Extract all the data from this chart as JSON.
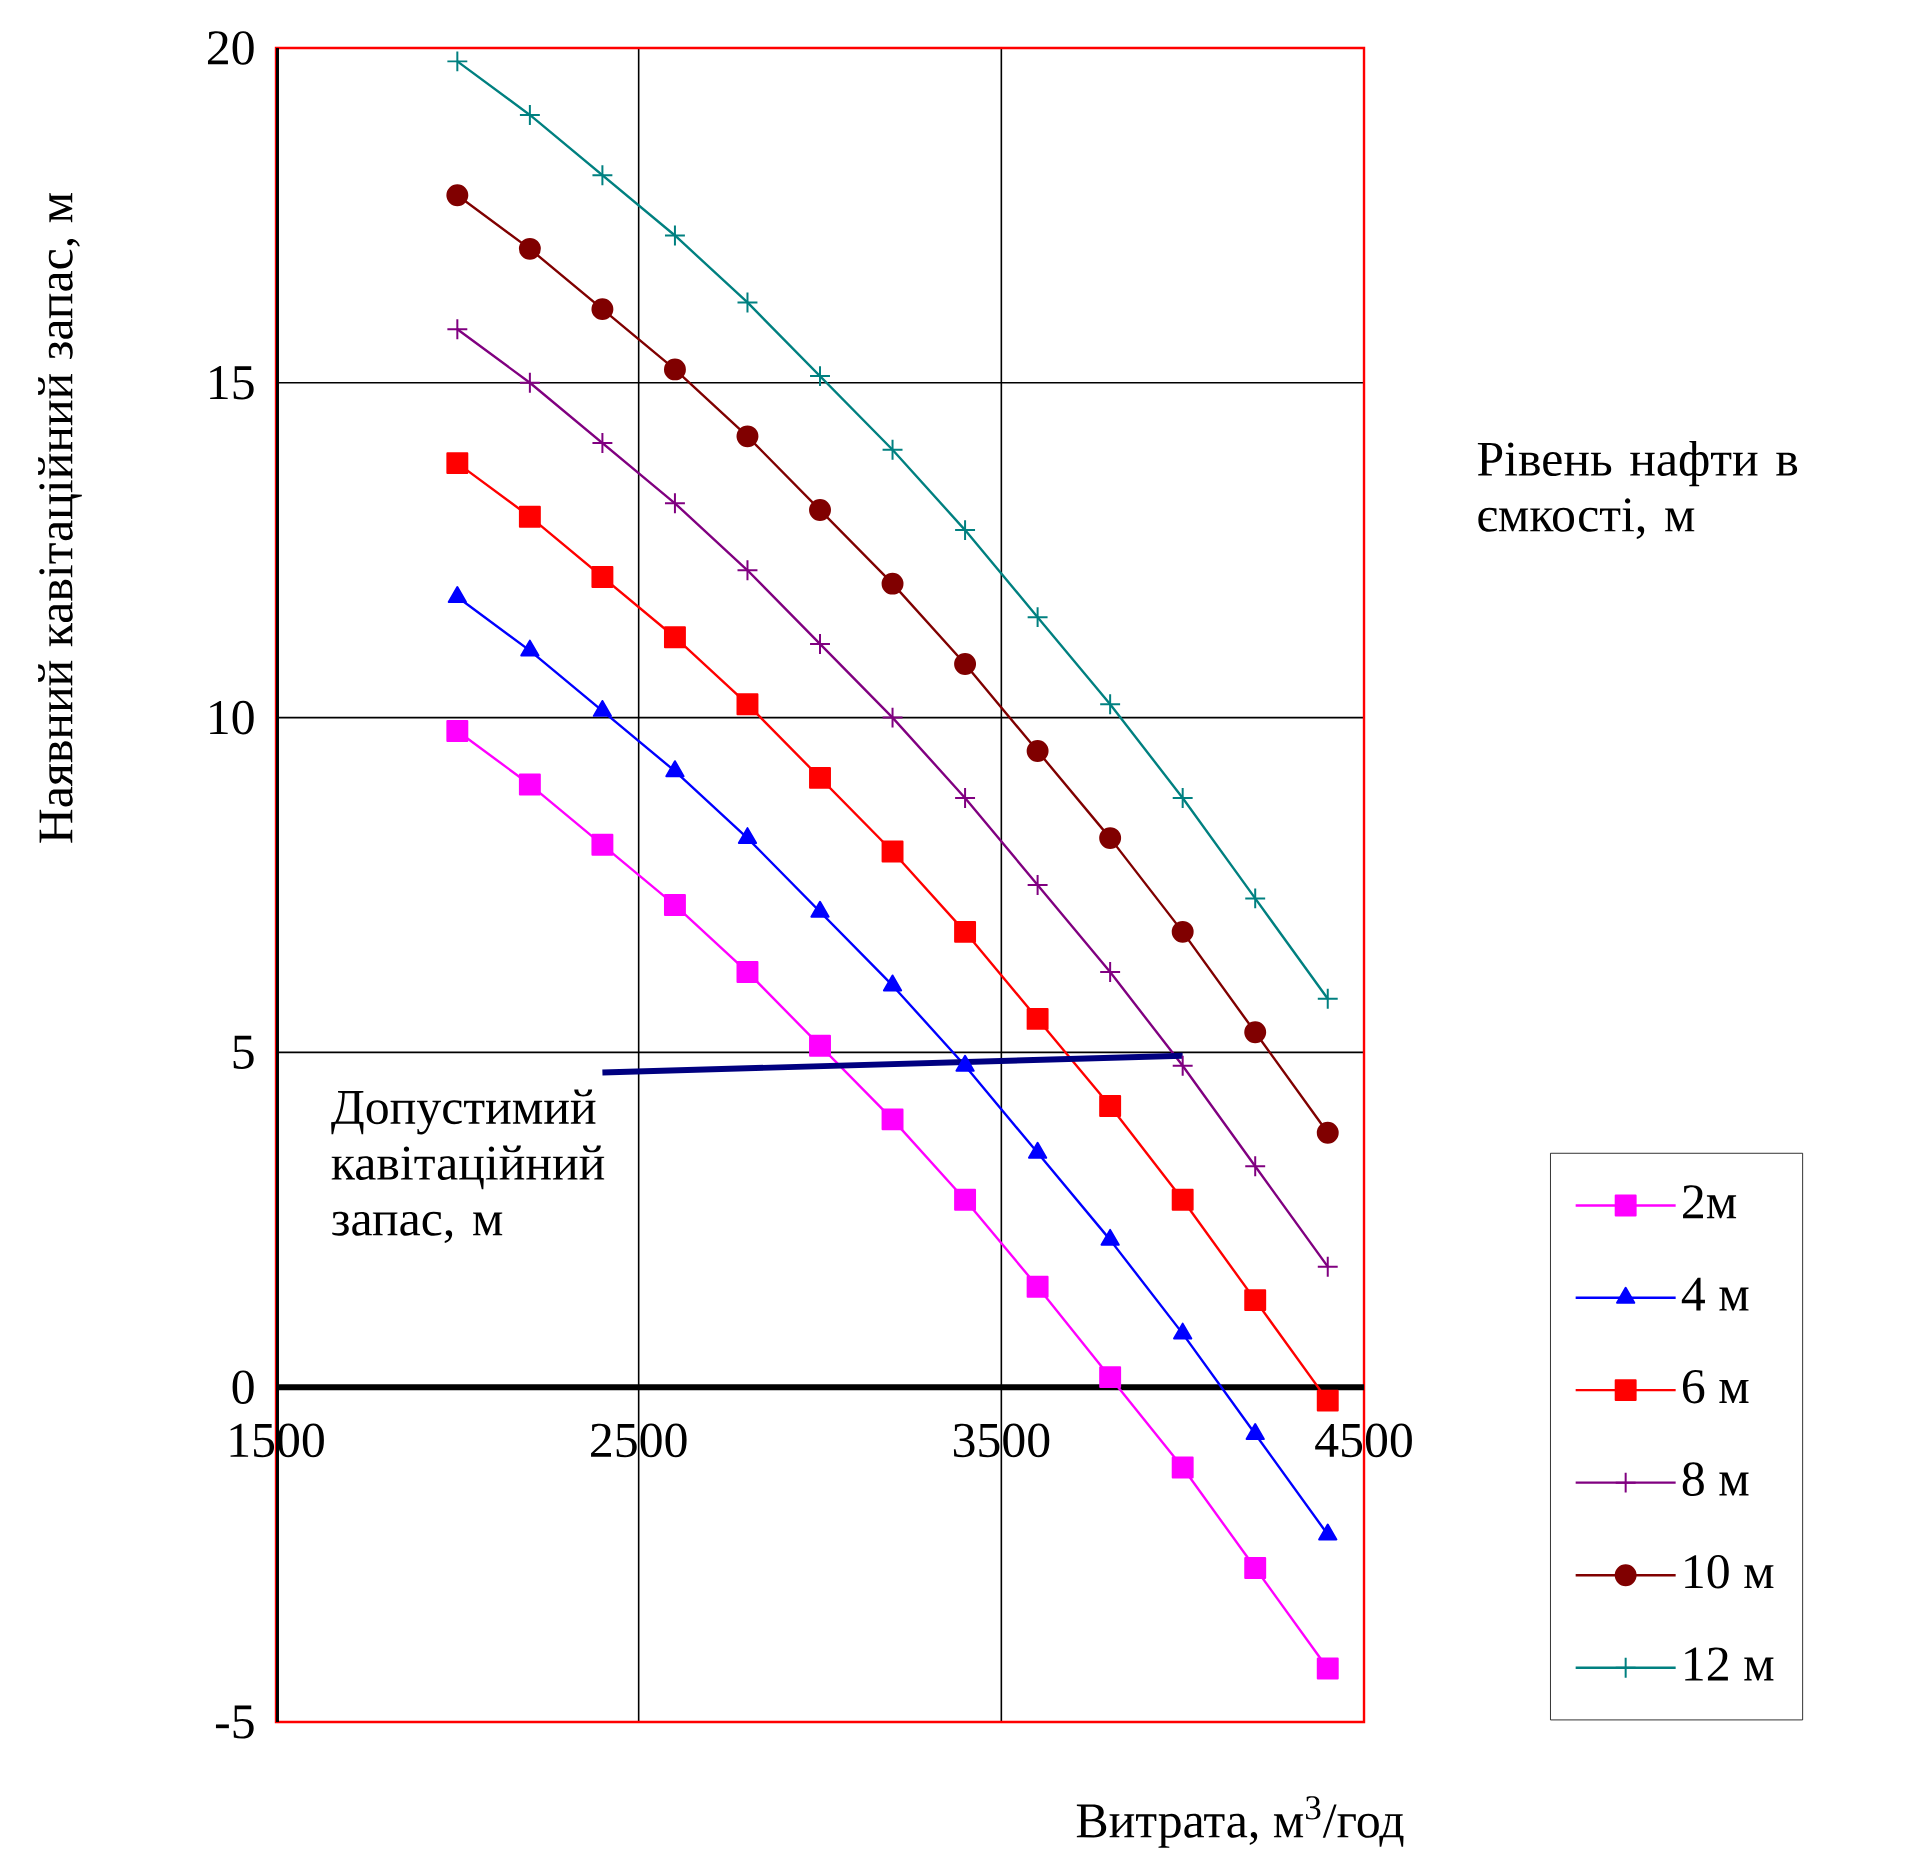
{
  "chart_data": {
    "type": "line",
    "xlabel": "Витрата, м$^{3}$/год",
    "ylabel": "Наявний кавітаційний запас, м",
    "legend_title": "Рівень нафти в ємкості, м",
    "x": [
      2000,
      2200,
      2400,
      2600,
      2800,
      3000,
      3200,
      3400,
      3600,
      3800,
      4000,
      4200,
      4400
    ],
    "series": [
      {
        "name": "2м",
        "color": "#ff00ff",
        "marker": "square",
        "values": [
          9.8,
          9.0,
          8.1,
          7.2,
          6.2,
          5.1,
          4.0,
          2.8,
          1.5,
          0.15,
          -1.2,
          -2.7,
          -4.2
        ]
      },
      {
        "name": "4 м",
        "color": "#0000ff",
        "marker": "triangle",
        "values": [
          11.8,
          11.0,
          10.1,
          9.2,
          8.2,
          7.1,
          6.0,
          4.8,
          3.5,
          2.2,
          0.8,
          -0.7,
          -2.2
        ]
      },
      {
        "name": "6 м",
        "color": "#ff0000",
        "marker": "square",
        "values": [
          13.8,
          13.0,
          12.1,
          11.2,
          10.2,
          9.1,
          8.0,
          6.8,
          5.5,
          4.2,
          2.8,
          1.3,
          -0.2
        ]
      },
      {
        "name": "8 м",
        "color": "#800080",
        "marker": "cross",
        "values": [
          15.8,
          15.0,
          14.1,
          13.2,
          12.2,
          11.1,
          10.0,
          8.8,
          7.5,
          6.2,
          4.8,
          3.3,
          1.8
        ]
      },
      {
        "name": "10 м",
        "color": "#800000",
        "marker": "circle",
        "values": [
          17.8,
          17.0,
          16.1,
          15.2,
          14.2,
          13.1,
          12.0,
          10.8,
          9.5,
          8.2,
          6.8,
          5.3,
          3.8
        ]
      },
      {
        "name": "12 м",
        "color": "#008080",
        "marker": "cross",
        "values": [
          19.8,
          19.0,
          18.1,
          17.2,
          16.2,
          15.1,
          14.0,
          12.8,
          11.5,
          10.2,
          8.8,
          7.3,
          5.8
        ]
      },
      {
        "name": "Допустимий кавітаційний запас, м",
        "color": "#000080",
        "marker": "none",
        "x": [
          2400,
          4000
        ],
        "values": [
          4.7,
          4.95
        ]
      }
    ],
    "xlim": [
      1500,
      4500
    ],
    "ylim": [
      -5,
      20
    ],
    "xticks": [
      1500,
      2500,
      3500,
      4500
    ],
    "yticks": [
      -5,
      0,
      5,
      10,
      15,
      20
    ],
    "grid": true,
    "legend": "right"
  }
}
